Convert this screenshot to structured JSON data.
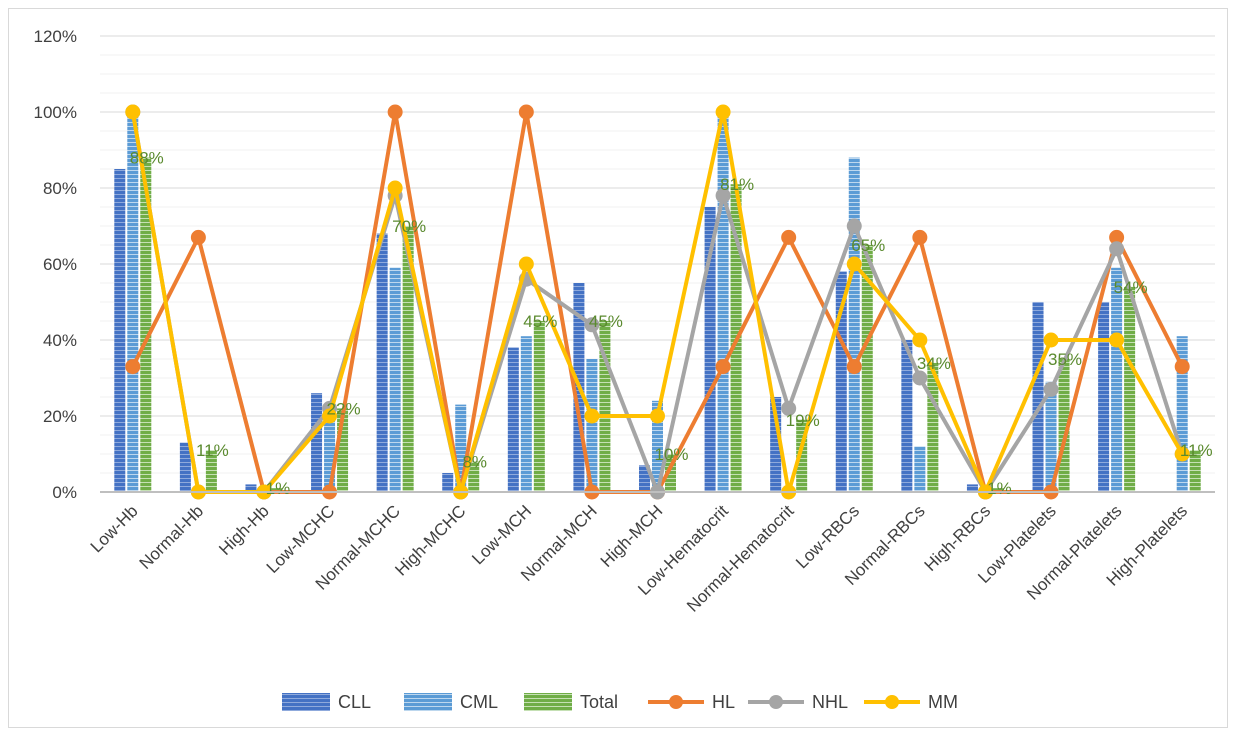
{
  "chart_data": {
    "type": "bar",
    "title": "",
    "xlabel": "",
    "ylabel": "",
    "ylim": [
      0,
      120
    ],
    "y_ticks": [
      "0%",
      "20%",
      "40%",
      "60%",
      "80%",
      "100%",
      "120%"
    ],
    "grid": true,
    "legend_position": "bottom",
    "categories": [
      "Low-Hb",
      "Normal-Hb",
      "High-Hb",
      "Low-MCHC",
      "Normal-MCHC",
      "High-MCHC",
      "Low-MCH",
      "Normal-MCH",
      "High-MCH",
      "Low-Hematocrit",
      "Normal-Hematocrit",
      "Low-RBCs",
      "Normal-RBCs",
      "High-RBCs",
      "Low-Platelets",
      "Normal-Platelets",
      "High-Platelets"
    ],
    "bar_series": [
      {
        "name": "CLL",
        "color": "#4472c4",
        "values": [
          85,
          13,
          2,
          26,
          68,
          5,
          38,
          55,
          7,
          75,
          25,
          58,
          40,
          2,
          50,
          50,
          0
        ]
      },
      {
        "name": "CML",
        "color": "#5b9bd5",
        "values": [
          100,
          0,
          0,
          19,
          59,
          23,
          41,
          35,
          24,
          100,
          0,
          88,
          12,
          0,
          29,
          59,
          41
        ]
      },
      {
        "name": "Total",
        "color": "#70ad47",
        "values": [
          88,
          11,
          1,
          22,
          70,
          8,
          45,
          45,
          10,
          81,
          19,
          65,
          34,
          1,
          35,
          54,
          11
        ]
      }
    ],
    "line_series": [
      {
        "name": "HL",
        "color": "#ed7d31",
        "values": [
          33,
          67,
          0,
          0,
          100,
          0,
          100,
          0,
          0,
          33,
          67,
          33,
          67,
          0,
          0,
          67,
          33
        ]
      },
      {
        "name": "NHL",
        "color": "#a5a5a5",
        "values": [
          100,
          0,
          0,
          22,
          78,
          0,
          56,
          44,
          0,
          78,
          22,
          70,
          30,
          0,
          27,
          64,
          10
        ]
      },
      {
        "name": "MM",
        "color": "#ffc000",
        "values": [
          100,
          0,
          0,
          20,
          80,
          0,
          60,
          20,
          20,
          100,
          0,
          60,
          40,
          0,
          40,
          40,
          10
        ]
      }
    ],
    "total_data_labels": [
      "88%",
      "11%",
      "1%",
      "22%",
      "70%",
      "8%",
      "45%",
      "45%",
      "10%",
      "81%",
      "19%",
      "65%",
      "34%",
      "1%",
      "35%",
      "54%",
      "11%"
    ],
    "legend": [
      "CLL",
      "CML",
      "Total",
      "HL",
      "NHL",
      "MM"
    ]
  }
}
